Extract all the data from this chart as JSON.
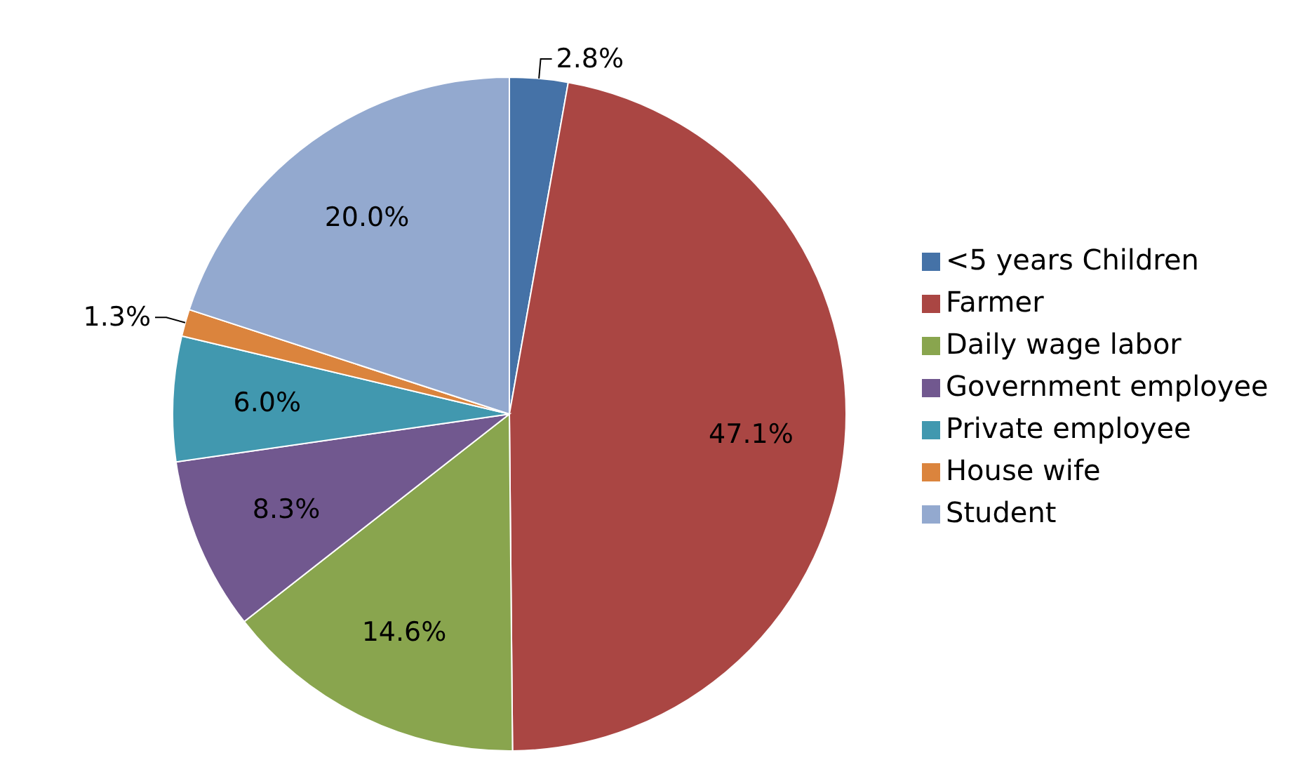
{
  "chart_data": {
    "type": "pie",
    "categories": [
      "<5 years Children",
      "Farmer",
      "Daily wage labor",
      "Government employee",
      "Private employee",
      "House wife",
      "Student"
    ],
    "values": [
      2.8,
      47.1,
      14.6,
      8.3,
      6.0,
      1.3,
      20.0
    ],
    "value_labels": [
      "2.8%",
      "47.1%",
      "14.6%",
      "8.3%",
      "6.0%",
      "1.3%",
      "20.0%"
    ],
    "colors": [
      "#4572a7",
      "#aa4643",
      "#89a54e",
      "#71588f",
      "#4198af",
      "#db843d",
      "#93a9cf"
    ],
    "legend": "right"
  }
}
